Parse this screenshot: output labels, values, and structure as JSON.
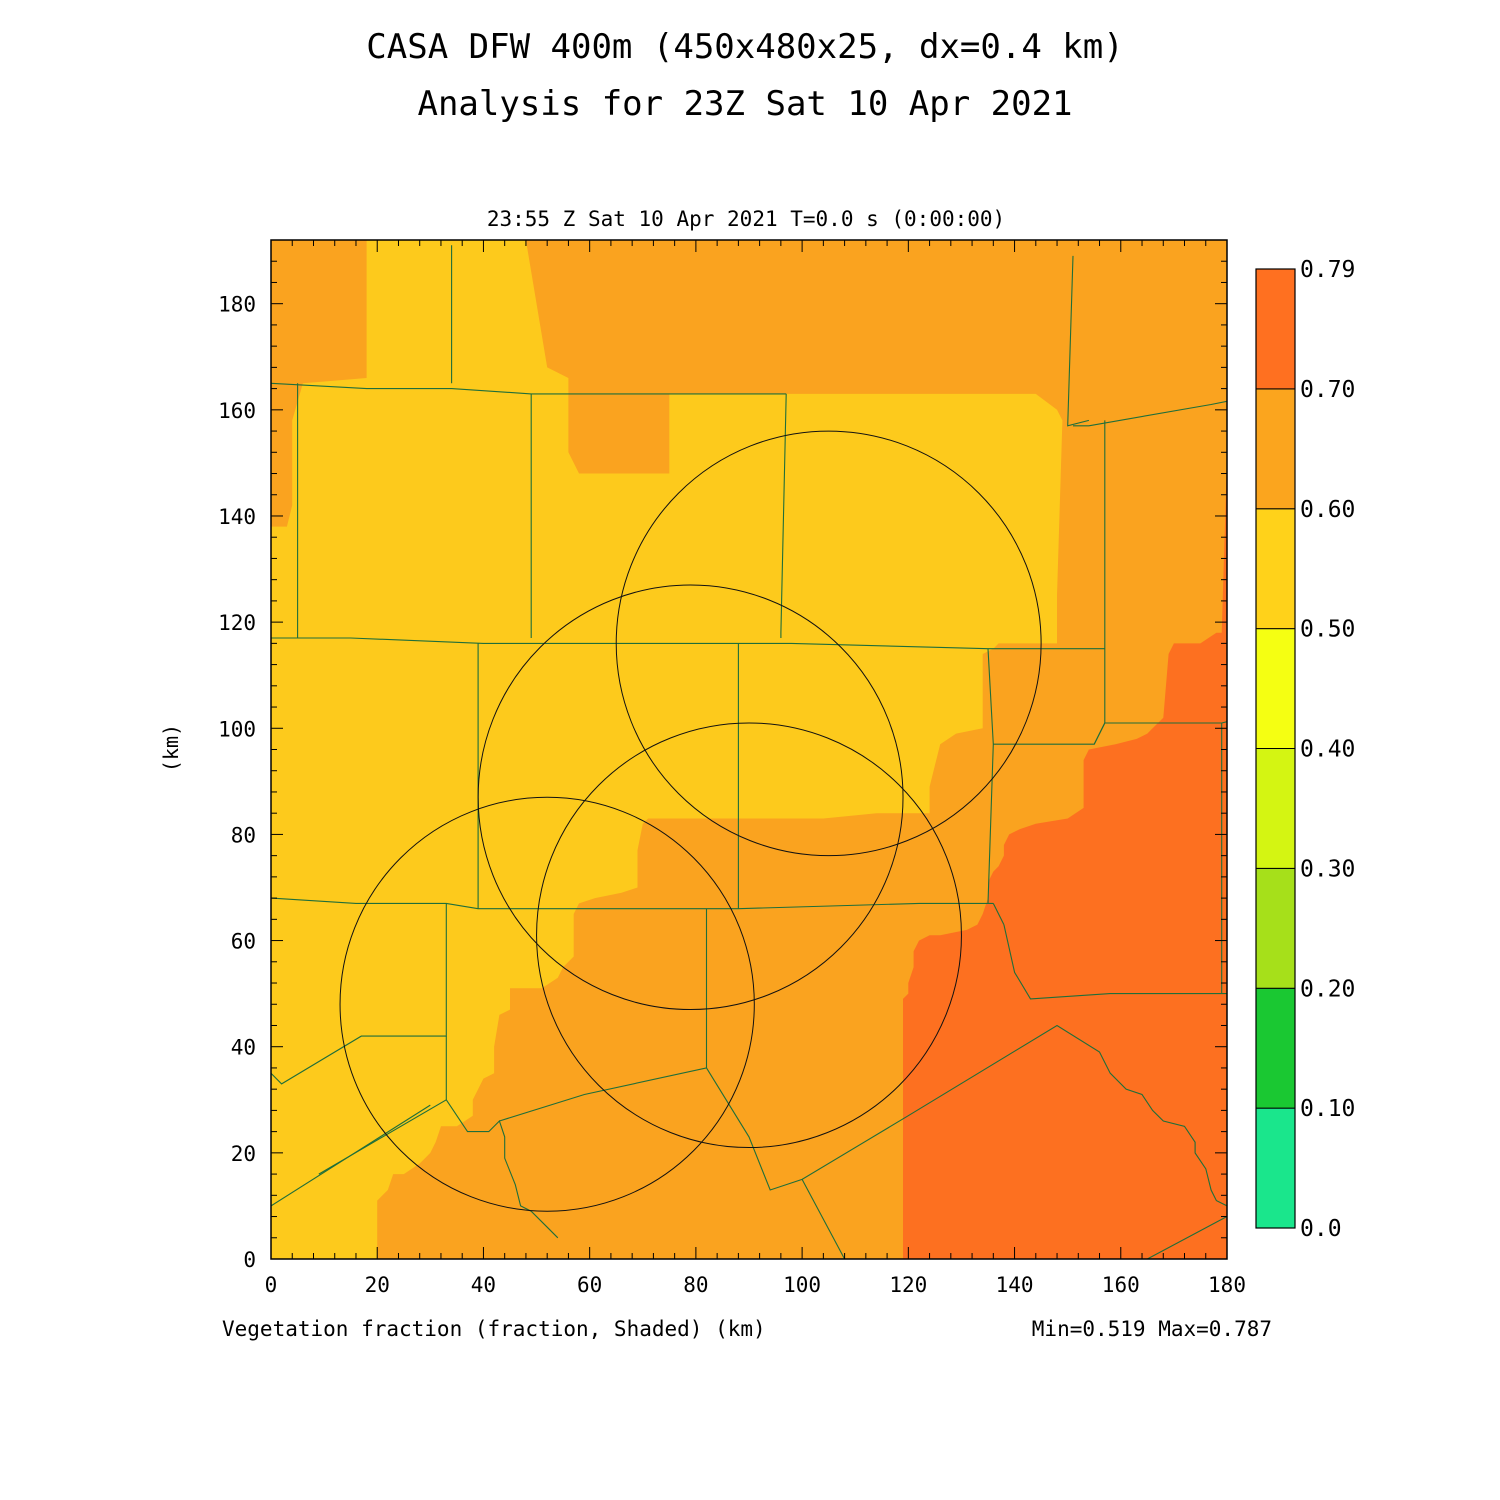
{
  "title": {
    "line1": "CASA DFW 400m (450x480x25, dx=0.4 km)",
    "line2": "Analysis for 23Z Sat 10 Apr 2021"
  },
  "subtitle": "23:55 Z Sat 10 Apr 2021   T=0.0 s (0:00:00)",
  "footer": {
    "variable_label": "Vegetation fraction (fraction, Shaded)  (km)",
    "minmax": "Min=0.519 Max=0.787"
  },
  "chart_data": {
    "type": "heatmap",
    "title": "CASA DFW 400m (450x480x25, dx=0.4 km) / Analysis for 23Z Sat 10 Apr 2021",
    "variable": "Vegetation fraction (fraction, Shaded)",
    "xlabel": "(km)",
    "ylabel": "(km)",
    "xlim": [
      0,
      180
    ],
    "ylim": [
      0,
      192
    ],
    "xticks": [
      0,
      20,
      40,
      60,
      80,
      100,
      120,
      140,
      160,
      180
    ],
    "yticks": [
      0,
      20,
      40,
      60,
      80,
      100,
      120,
      140,
      160,
      180
    ],
    "min": 0.519,
    "max": 0.787,
    "colorbar": {
      "labels": [
        "0.0",
        "0.10",
        "0.20",
        "0.30",
        "0.40",
        "0.50",
        "0.60",
        "0.70",
        "0.79"
      ],
      "colors": [
        "#1ae68c",
        "#1ac832",
        "#a6e01a",
        "#d4f512",
        "#f5ff12",
        "#ffd21a",
        "#fba51e",
        "#ff7020"
      ]
    },
    "fill_colors": {
      "band_0_50_0_60": "#fdca1c",
      "band_0_60_0_70": "#faa31f",
      "band_0_70_0_79": "#fd7020"
    },
    "regions": [
      {
        "level": "0.60-0.70",
        "polygon": [
          [
            0,
            192
          ],
          [
            182,
            192
          ],
          [
            182,
            0
          ],
          [
            0,
            0
          ]
        ]
      },
      {
        "level": "0.50-0.60",
        "polygon": [
          [
            18,
            192
          ],
          [
            48,
            192
          ],
          [
            52,
            168
          ],
          [
            56,
            166
          ],
          [
            56,
            152
          ],
          [
            58,
            148
          ],
          [
            75,
            148
          ],
          [
            75,
            163
          ],
          [
            144,
            163
          ],
          [
            148,
            160
          ],
          [
            149,
            158
          ],
          [
            148,
            125
          ],
          [
            148,
            116
          ],
          [
            144,
            116
          ],
          [
            138,
            116
          ],
          [
            137,
            116
          ],
          [
            136,
            115
          ],
          [
            134,
            114
          ],
          [
            134,
            100
          ],
          [
            129,
            99
          ],
          [
            126,
            97
          ],
          [
            125,
            93
          ],
          [
            124,
            89
          ],
          [
            124,
            84
          ],
          [
            114,
            84
          ],
          [
            104,
            83
          ],
          [
            102,
            83
          ],
          [
            83,
            83
          ],
          [
            71,
            83
          ],
          [
            70,
            82
          ],
          [
            69,
            77
          ],
          [
            69,
            70
          ],
          [
            66,
            69
          ],
          [
            61,
            68
          ],
          [
            58,
            67
          ],
          [
            57,
            65
          ],
          [
            57,
            57
          ],
          [
            55,
            55
          ],
          [
            54,
            53
          ],
          [
            51,
            51
          ],
          [
            45,
            51
          ],
          [
            45,
            47
          ],
          [
            43,
            46
          ],
          [
            42,
            40
          ],
          [
            42,
            35
          ],
          [
            40,
            34
          ],
          [
            39,
            32
          ],
          [
            38,
            30
          ],
          [
            38,
            27
          ],
          [
            35,
            25
          ],
          [
            32,
            25
          ],
          [
            31,
            22
          ],
          [
            30,
            20
          ],
          [
            29,
            19
          ],
          [
            28,
            18
          ],
          [
            25,
            16
          ],
          [
            23,
            16
          ],
          [
            22,
            13
          ],
          [
            20,
            11
          ],
          [
            20,
            9
          ],
          [
            20,
            0
          ],
          [
            0,
            0
          ],
          [
            0,
            138
          ],
          [
            3,
            138
          ],
          [
            4,
            142
          ],
          [
            4,
            158
          ],
          [
            6,
            165
          ],
          [
            18,
            166
          ]
        ]
      },
      {
        "level": "0.70-0.79",
        "polygon": [
          [
            182,
            151
          ],
          [
            180,
            151
          ],
          [
            179,
            118
          ],
          [
            178,
            118
          ],
          [
            175,
            116
          ],
          [
            170,
            116
          ],
          [
            169,
            114
          ],
          [
            168,
            102
          ],
          [
            166,
            100
          ],
          [
            165,
            99
          ],
          [
            163,
            98
          ],
          [
            159,
            97
          ],
          [
            154,
            96
          ],
          [
            153,
            94
          ],
          [
            153,
            85
          ],
          [
            150,
            83
          ],
          [
            144,
            82
          ],
          [
            141,
            81
          ],
          [
            139,
            80
          ],
          [
            138,
            78
          ],
          [
            138,
            76
          ],
          [
            137,
            74
          ],
          [
            136,
            73
          ],
          [
            135,
            71
          ],
          [
            135,
            68
          ],
          [
            134,
            65
          ],
          [
            133,
            63
          ],
          [
            131,
            62
          ],
          [
            126,
            61
          ],
          [
            124,
            61
          ],
          [
            122,
            60
          ],
          [
            121,
            58
          ],
          [
            121,
            55
          ],
          [
            120,
            52
          ],
          [
            120,
            50
          ],
          [
            119,
            49
          ],
          [
            119,
            0
          ],
          [
            182,
            0
          ]
        ]
      }
    ],
    "circles": [
      {
        "center": [
          52,
          48
        ],
        "radius": 39
      },
      {
        "center": [
          79,
          87
        ],
        "radius": 40
      },
      {
        "center": [
          90,
          61
        ],
        "radius": 40
      },
      {
        "center": [
          105,
          116
        ],
        "radius": 40
      }
    ],
    "boundaries": [
      [
        [
          0,
          165
        ],
        [
          18,
          164
        ],
        [
          34,
          164
        ],
        [
          49,
          163
        ],
        [
          97,
          163
        ]
      ],
      [
        [
          0,
          117
        ],
        [
          15,
          117
        ],
        [
          40,
          116
        ],
        [
          98,
          116
        ],
        [
          135,
          115
        ],
        [
          157,
          115
        ]
      ],
      [
        [
          0,
          68
        ],
        [
          16,
          67
        ],
        [
          33,
          67
        ],
        [
          39,
          66
        ],
        [
          58,
          66
        ],
        [
          88,
          66
        ],
        [
          122,
          67
        ],
        [
          136,
          67
        ]
      ],
      [
        [
          34,
          165
        ],
        [
          34,
          191
        ]
      ],
      [
        [
          49,
          163
        ],
        [
          49,
          117
        ]
      ],
      [
        [
          97,
          163
        ],
        [
          96,
          118
        ],
        [
          96,
          117
        ]
      ],
      [
        [
          5,
          165
        ],
        [
          5,
          117
        ]
      ],
      [
        [
          39,
          116
        ],
        [
          39,
          66
        ]
      ],
      [
        [
          88,
          116
        ],
        [
          88,
          66
        ]
      ],
      [
        [
          135,
          115
        ],
        [
          136,
          97
        ],
        [
          135,
          67
        ]
      ],
      [
        [
          33,
          67
        ],
        [
          33,
          42
        ],
        [
          17,
          42
        ],
        [
          2,
          33
        ],
        [
          0,
          35
        ]
      ],
      [
        [
          33,
          42
        ],
        [
          33,
          30
        ],
        [
          9,
          16
        ]
      ],
      [
        [
          33,
          30
        ],
        [
          37,
          24
        ],
        [
          41,
          24
        ],
        [
          43,
          26
        ],
        [
          44,
          23
        ],
        [
          44,
          19
        ],
        [
          46,
          14
        ],
        [
          47,
          10
        ],
        [
          49,
          9
        ],
        [
          52,
          6
        ],
        [
          54,
          4
        ]
      ],
      [
        [
          43,
          26
        ],
        [
          59,
          31
        ],
        [
          82,
          36
        ],
        [
          82,
          66
        ]
      ],
      [
        [
          82,
          36
        ],
        [
          90,
          23
        ],
        [
          94,
          13
        ],
        [
          100,
          15
        ],
        [
          120,
          27
        ],
        [
          148,
          44
        ],
        [
          156,
          39
        ],
        [
          158,
          35
        ],
        [
          161,
          32
        ],
        [
          164,
          31
        ],
        [
          166,
          28
        ],
        [
          168,
          26
        ],
        [
          172,
          25
        ],
        [
          174,
          22
        ],
        [
          174,
          20
        ],
        [
          176,
          17
        ],
        [
          177,
          13
        ],
        [
          178,
          11
        ],
        [
          180,
          10
        ]
      ],
      [
        [
          100,
          15
        ],
        [
          108,
          0
        ]
      ],
      [
        [
          0,
          10
        ],
        [
          30,
          29
        ]
      ],
      [
        [
          138,
          63
        ],
        [
          140,
          54
        ],
        [
          143,
          49
        ],
        [
          158,
          50
        ],
        [
          184,
          50
        ]
      ],
      [
        [
          136,
          67
        ],
        [
          138,
          63
        ]
      ],
      [
        [
          151,
          189
        ],
        [
          150,
          157
        ],
        [
          154,
          158
        ]
      ],
      [
        [
          151,
          157
        ],
        [
          154,
          157
        ],
        [
          177,
          161
        ],
        [
          182,
          162
        ]
      ],
      [
        [
          157,
          158
        ],
        [
          157,
          101
        ],
        [
          155,
          97
        ]
      ],
      [
        [
          157,
          101
        ],
        [
          179,
          101
        ],
        [
          183,
          102
        ]
      ],
      [
        [
          136,
          97
        ],
        [
          155,
          97
        ],
        [
          157,
          101
        ]
      ],
      [
        [
          179,
          101
        ],
        [
          179,
          50
        ]
      ],
      [
        [
          165,
          0
        ],
        [
          180,
          8
        ],
        [
          183,
          10
        ]
      ]
    ]
  }
}
